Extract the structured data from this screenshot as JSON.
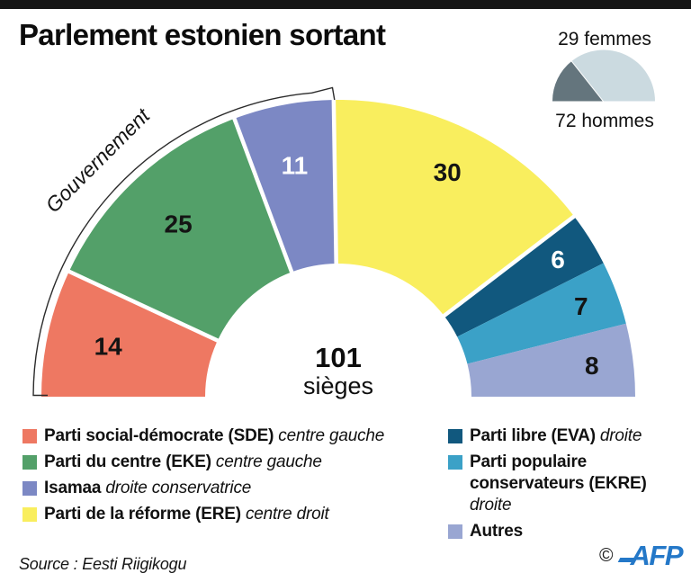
{
  "title": "Parlement estonien sortant",
  "source": "Source : Eesti Riigikogu",
  "footer": {
    "copyright": "©",
    "logo": "AFP"
  },
  "annotation": {
    "label": "Gouvernement",
    "covers_seats": 50
  },
  "chart_data": [
    {
      "type": "pie",
      "variant": "hemicycle",
      "title": "Parlement estonien sortant",
      "total": 101,
      "center_label": {
        "value": "101",
        "unit": "sièges"
      },
      "legend_position": "bottom",
      "series": [
        {
          "name": "Parti social-démocrate (SDE)",
          "code": "SDE",
          "orientation": "centre gauche",
          "seats": 14,
          "color": "#ee7862",
          "label_color": "#141414",
          "government": true
        },
        {
          "name": "Parti du centre (EKE)",
          "code": "EKE",
          "orientation": "centre gauche",
          "seats": 25,
          "color": "#53a069",
          "label_color": "#141414",
          "government": true
        },
        {
          "name": "Isamaa",
          "code": "Isamaa",
          "orientation": "droite conservatrice",
          "seats": 11,
          "color": "#7c88c4",
          "label_color": "#ffffff",
          "government": true
        },
        {
          "name": "Parti de la réforme (ERE)",
          "code": "ERE",
          "orientation": "centre droit",
          "seats": 30,
          "color": "#f9ee5e",
          "label_color": "#141414",
          "government": false
        },
        {
          "name": "Parti libre (EVA)",
          "code": "EVA",
          "orientation": "droite",
          "seats": 6,
          "color": "#11587e",
          "label_color": "#ffffff",
          "government": false
        },
        {
          "name": "Parti populaire conservateurs (EKRE)",
          "code": "EKRE",
          "orientation": "droite",
          "seats": 7,
          "color": "#3ba1c7",
          "label_color": "#141414",
          "government": false
        },
        {
          "name": "Autres",
          "code": "Autres",
          "orientation": "",
          "seats": 8,
          "color": "#99a6d2",
          "label_color": "#141414",
          "government": false
        }
      ]
    },
    {
      "type": "pie",
      "variant": "half",
      "total": 101,
      "slices": [
        {
          "label": "29 femmes",
          "value": 29,
          "color": "#64757d",
          "label_position": "above"
        },
        {
          "label": "72 hommes",
          "value": 72,
          "color": "#cbdae0",
          "label_position": "below"
        }
      ]
    }
  ],
  "legend": {
    "left": [
      {
        "color": "#ee7862",
        "name": "Parti social-démocrate (SDE)",
        "descriptor": "centre gauche"
      },
      {
        "color": "#53a069",
        "name": "Parti du centre (EKE)",
        "descriptor": "centre gauche"
      },
      {
        "color": "#7c88c4",
        "name": "Isamaa",
        "descriptor": "droite conservatrice"
      },
      {
        "color": "#f9ee5e",
        "name": "Parti de la réforme (ERE)",
        "descriptor": "centre droit"
      }
    ],
    "right": [
      {
        "color": "#11587e",
        "name": "Parti libre (EVA)",
        "descriptor": "droite"
      },
      {
        "color": "#3ba1c7",
        "name": "Parti populaire conservateurs (EKRE)",
        "descriptor": "droite",
        "descriptor_block": true
      },
      {
        "color": "#99a6d2",
        "name": "Autres"
      }
    ]
  }
}
